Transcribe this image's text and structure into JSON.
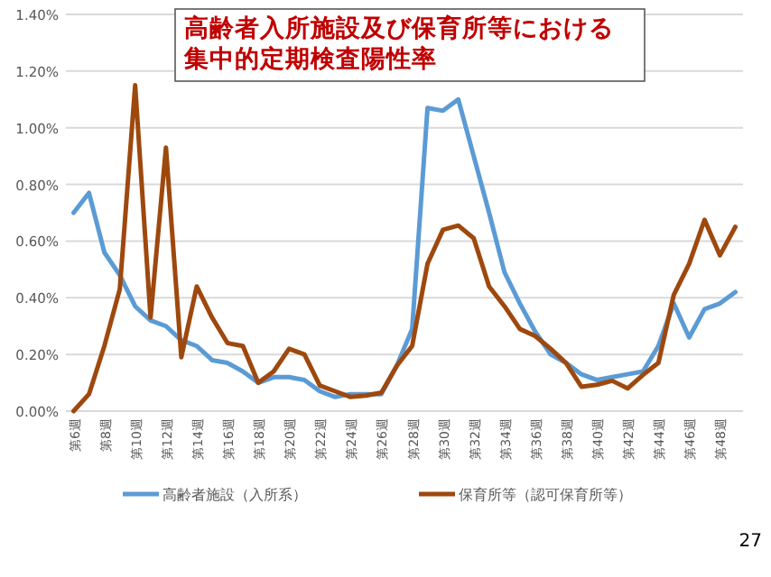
{
  "chart_data": {
    "type": "line",
    "title": "高齢者入所施設及び保育所等における",
    "subtitle": "集中的定期検査陽性率",
    "categories": [
      "第6週",
      null,
      "第8週",
      null,
      "第10週",
      null,
      "第12週",
      null,
      "第14週",
      null,
      "第16週",
      null,
      "第18週",
      null,
      "第20週",
      null,
      "第22週",
      null,
      "第24週",
      null,
      "第26週",
      null,
      "第28週",
      null,
      "第30週",
      null,
      "第32週",
      null,
      "第34週",
      null,
      "第36週",
      null,
      "第38週",
      null,
      "第40週",
      null,
      "第42週",
      null,
      "第44週",
      null,
      "第46週",
      null,
      "第48週",
      null
    ],
    "series": [
      {
        "name": "高齢者施設（入所系）",
        "color": "#5b9bd5",
        "values": [
          0.7,
          0.77,
          0.56,
          0.48,
          0.37,
          0.32,
          0.3,
          0.25,
          0.23,
          0.18,
          0.17,
          0.14,
          0.1,
          0.12,
          0.12,
          0.11,
          0.07,
          0.05,
          0.06,
          0.06,
          0.06,
          0.16,
          0.29,
          1.07,
          1.06,
          1.1,
          0.9,
          0.7,
          0.49,
          0.38,
          0.28,
          0.2,
          0.17,
          0.13,
          0.11,
          0.12,
          0.13,
          0.14,
          0.23,
          0.38,
          0.26,
          0.36,
          0.38,
          0.42
        ]
      },
      {
        "name": "保育所等（認可保育所等）",
        "color": "#9e480e",
        "values": [
          0.0,
          0.06,
          0.23,
          0.43,
          1.15,
          0.33,
          0.93,
          0.19,
          0.44,
          0.33,
          0.24,
          0.23,
          0.1,
          0.14,
          0.22,
          0.2,
          0.09,
          0.07,
          0.05,
          0.055,
          0.065,
          0.16,
          0.23,
          0.52,
          0.64,
          0.655,
          0.61,
          0.44,
          0.37,
          0.29,
          0.265,
          0.22,
          0.17,
          0.086,
          0.093,
          0.107,
          0.08,
          0.128,
          0.17,
          0.41,
          0.52,
          0.675,
          0.55,
          0.65
        ]
      }
    ],
    "ylim": [
      0,
      1.4
    ],
    "yticks": [
      {
        "value": 0,
        "label": "0.00%"
      },
      {
        "value": 0.2,
        "label": "0.20%"
      },
      {
        "value": 0.4,
        "label": "0.40%"
      },
      {
        "value": 0.6,
        "label": "0.60%"
      },
      {
        "value": 0.8,
        "label": "0.80%"
      },
      {
        "value": 1.0,
        "label": "1.00%"
      },
      {
        "value": 1.2,
        "label": "1.20%"
      },
      {
        "value": 1.4,
        "label": "1.40%"
      }
    ],
    "grid": "y",
    "legend": "bottom",
    "marker": "none",
    "line_style": "solid",
    "annotations": [
      "27"
    ]
  }
}
